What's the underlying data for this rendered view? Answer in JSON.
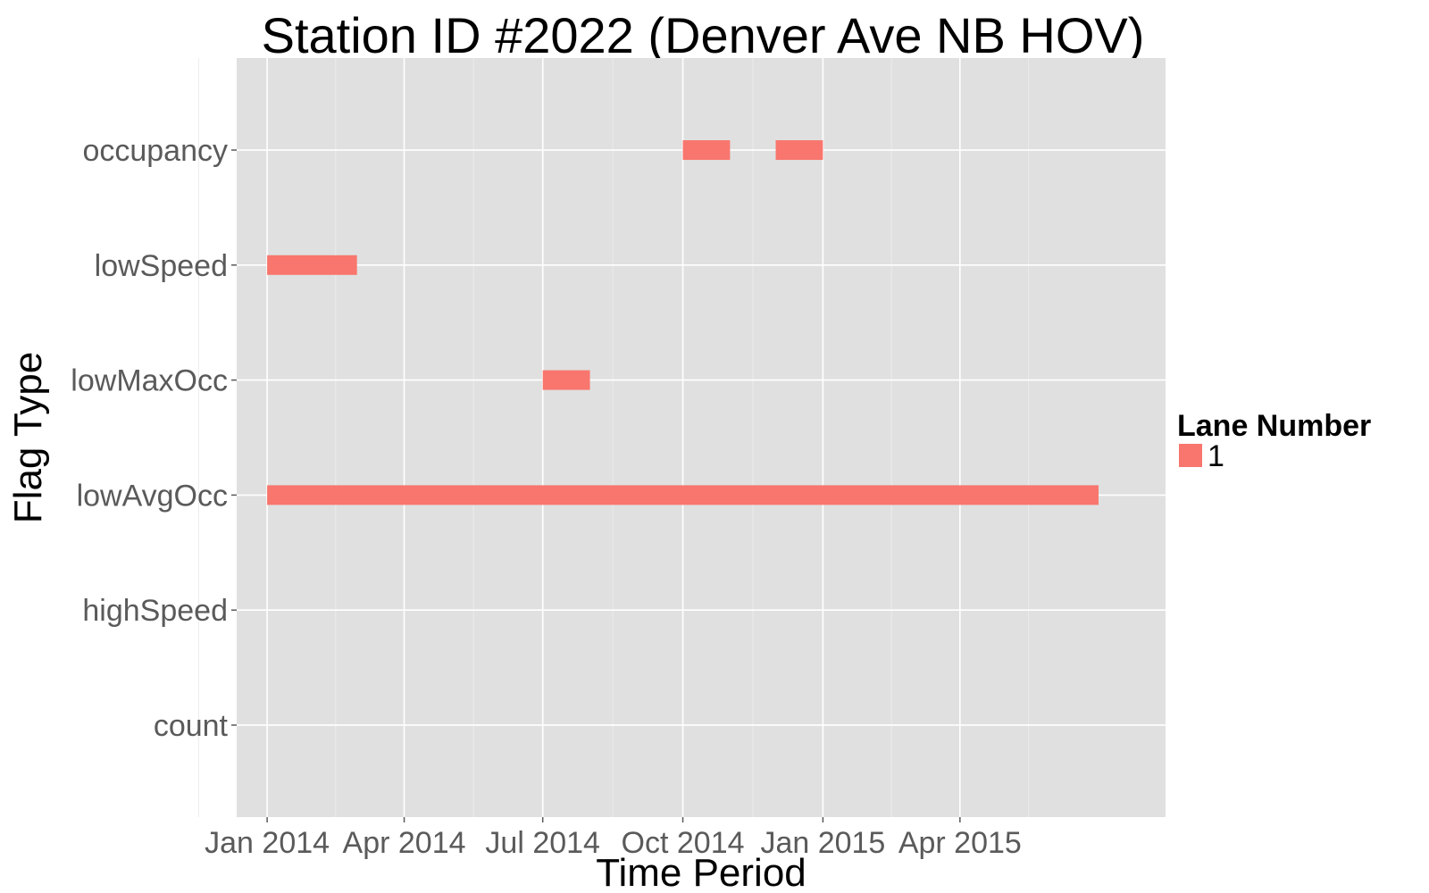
{
  "chart_data": {
    "type": "bar",
    "title": "Station ID #2022 (Denver Ave NB HOV)",
    "xlabel": "Time Period",
    "ylabel": "Flag Type",
    "x_axis_type": "date",
    "xlim": [
      "2013-12-12",
      "2015-08-14"
    ],
    "x_ticks": [
      {
        "date": "2014-01-01",
        "label": "Jan 2014"
      },
      {
        "date": "2014-04-01",
        "label": "Apr 2014"
      },
      {
        "date": "2014-07-01",
        "label": "Jul 2014"
      },
      {
        "date": "2014-10-01",
        "label": "Oct 2014"
      },
      {
        "date": "2015-01-01",
        "label": "Jan 2015"
      },
      {
        "date": "2015-04-01",
        "label": "Apr 2015"
      }
    ],
    "categories": [
      "count",
      "highSpeed",
      "lowAvgOcc",
      "lowMaxOcc",
      "lowSpeed",
      "occupancy"
    ],
    "legend": {
      "title": "Lane Number",
      "position": "right",
      "entries": [
        "1"
      ]
    },
    "grid": true,
    "series": [
      {
        "name": "1",
        "color": "#F8766D",
        "segments": [
          {
            "category": "occupancy",
            "start": "2014-10-01",
            "end": "2014-11-01"
          },
          {
            "category": "occupancy",
            "start": "2014-12-01",
            "end": "2015-01-01"
          },
          {
            "category": "lowSpeed",
            "start": "2014-01-01",
            "end": "2014-03-01"
          },
          {
            "category": "lowMaxOcc",
            "start": "2014-07-01",
            "end": "2014-08-01"
          },
          {
            "category": "lowAvgOcc",
            "start": "2014-01-01",
            "end": "2015-07-01"
          }
        ]
      }
    ]
  },
  "colors": {
    "panel_background": "#E0E0E0",
    "grid_major": "#FFFFFF",
    "grid_minor": "#EBEBEB",
    "bar": "#F8766D"
  }
}
